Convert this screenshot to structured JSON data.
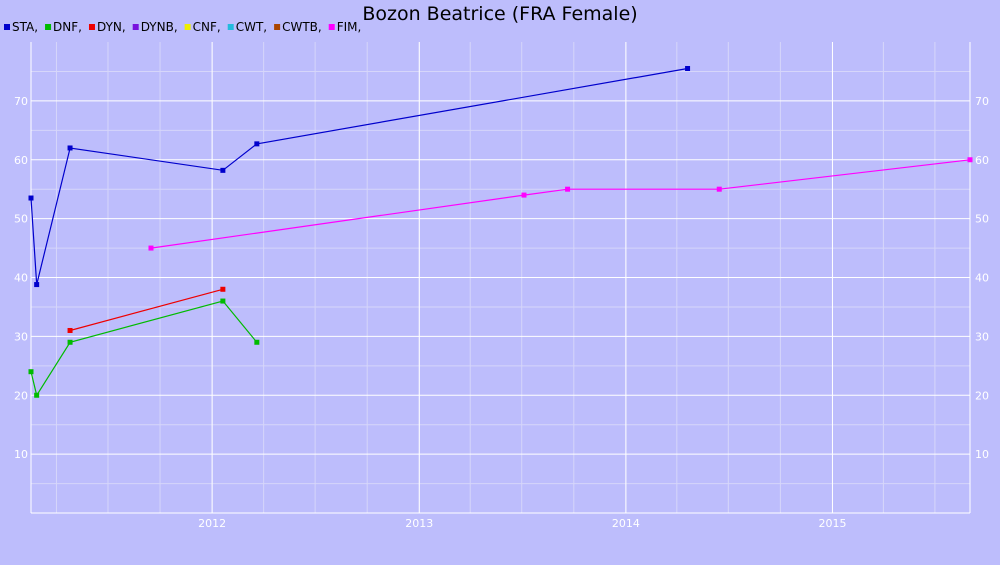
{
  "chart_data": {
    "type": "line",
    "title": "Bozon Beatrice (FRA Female)",
    "xlabel": "",
    "ylabel": "",
    "x_type": "date",
    "xlim": [
      "2011-02-15",
      "2015-09-01"
    ],
    "ylim": [
      0,
      80
    ],
    "x_ticks": [
      "2012",
      "2013",
      "2014",
      "2015"
    ],
    "y_ticks": [
      10,
      20,
      30,
      40,
      50,
      60,
      70
    ],
    "grid": true,
    "legend_position": "top-left",
    "series": [
      {
        "name": "STA",
        "label": "STA,",
        "color": "#0000cc",
        "points": [
          {
            "x": "2011-02-15",
            "y": 53.5
          },
          {
            "x": "2011-02-25",
            "y": 38.8
          },
          {
            "x": "2011-04-25",
            "y": 62
          },
          {
            "x": "2012-01-20",
            "y": 58.2
          },
          {
            "x": "2012-03-20",
            "y": 62.7
          },
          {
            "x": "2014-04-20",
            "y": 75.5
          }
        ]
      },
      {
        "name": "DNF",
        "label": "DNF,",
        "color": "#00bb00",
        "points": [
          {
            "x": "2011-02-15",
            "y": 24
          },
          {
            "x": "2011-02-25",
            "y": 20
          },
          {
            "x": "2011-04-25",
            "y": 29
          },
          {
            "x": "2012-01-20",
            "y": 36
          },
          {
            "x": "2012-03-20",
            "y": 29
          }
        ]
      },
      {
        "name": "DYN",
        "label": "DYN,",
        "color": "#ee0000",
        "points": [
          {
            "x": "2011-04-25",
            "y": 31
          },
          {
            "x": "2012-01-20",
            "y": 38
          }
        ]
      },
      {
        "name": "DYNB",
        "label": "DYNB,",
        "color": "#7711dd",
        "points": []
      },
      {
        "name": "CNF",
        "label": "CNF,",
        "color": "#eeee00",
        "points": []
      },
      {
        "name": "CWT",
        "label": "CWT,",
        "color": "#22bbdd",
        "points": []
      },
      {
        "name": "CWTB",
        "label": "CWTB,",
        "color": "#aa4400",
        "points": []
      },
      {
        "name": "FIM",
        "label": "FIM,",
        "color": "#ff00ff",
        "points": [
          {
            "x": "2011-09-15",
            "y": 45
          },
          {
            "x": "2013-07-05",
            "y": 54
          },
          {
            "x": "2013-09-20",
            "y": 55
          },
          {
            "x": "2014-06-15",
            "y": 55
          },
          {
            "x": "2015-09-01",
            "y": 60
          }
        ]
      }
    ]
  }
}
